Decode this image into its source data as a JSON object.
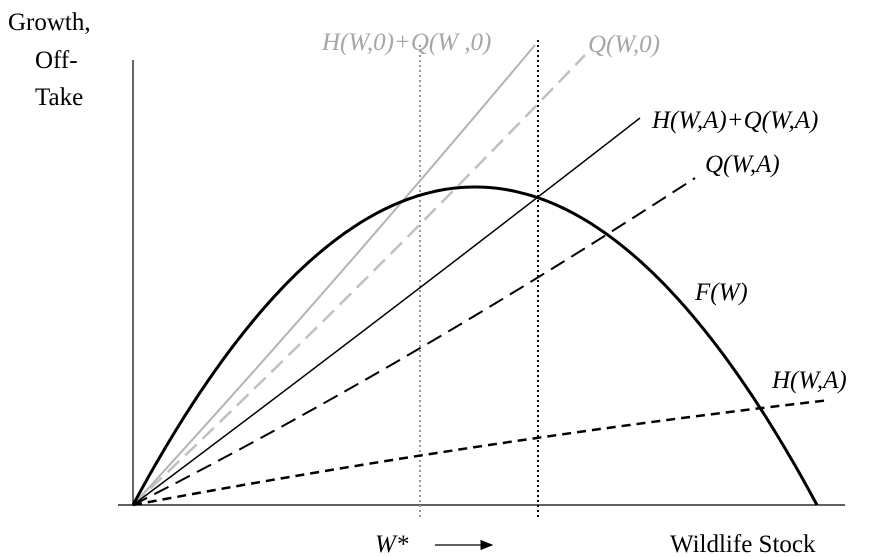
{
  "axis_labels": {
    "y": [
      "Growth,",
      "Off-",
      "Take"
    ],
    "x": "Wildlife Stock"
  },
  "curve_labels": {
    "h0_plus_q0": "H(W,0)+Q(W ,0)",
    "q0": "Q(W,0)",
    "h_plus_q": "H(W,A)+Q(W,A)",
    "q": "Q(W,A)",
    "f": "F(W)",
    "h": "H(W,A)"
  },
  "marker": {
    "label": "W*"
  }
}
